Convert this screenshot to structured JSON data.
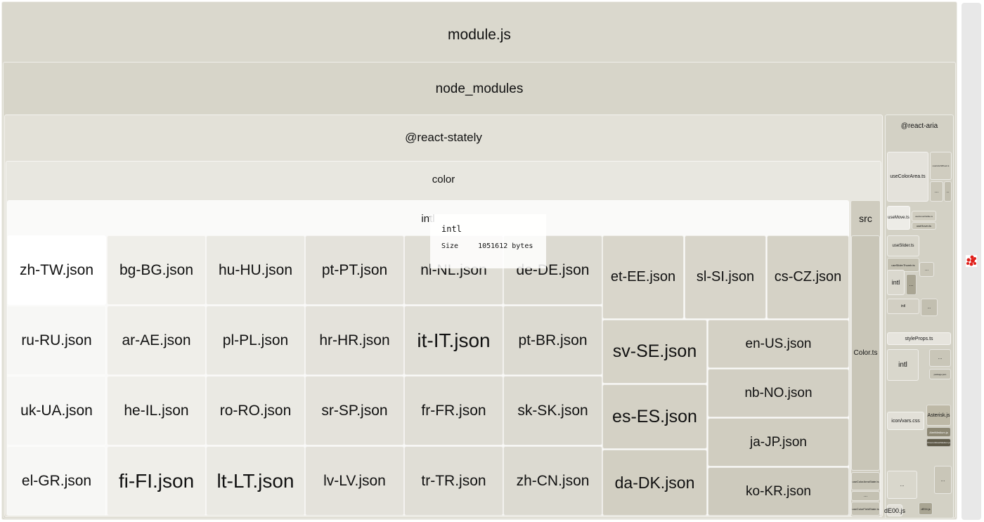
{
  "tree": {
    "root": "module.js",
    "node_modules": "node_modules",
    "react_stately": "@react-stately",
    "color": "color",
    "intl": "intl",
    "src": "src",
    "color_ts": "Color.ts",
    "src_small": [
      "useColorAreaState.ts",
      "useColorFieldState.ts",
      "..."
    ],
    "grid_files": [
      "zh-TW.json",
      "bg-BG.json",
      "hu-HU.json",
      "pt-PT.json",
      "nl-NL.json",
      "de-DE.json",
      "ru-RU.json",
      "ar-AE.json",
      "pl-PL.json",
      "hr-HR.json",
      "it-IT.json",
      "pt-BR.json",
      "uk-UA.json",
      "he-IL.json",
      "ro-RO.json",
      "sr-SP.json",
      "fr-FR.json",
      "sk-SK.json",
      "el-GR.json",
      "fi-FI.json",
      "lt-LT.json",
      "lv-LV.json",
      "tr-TR.json",
      "zh-CN.json"
    ],
    "right_files": [
      "et-EE.json",
      "sl-SI.json",
      "cs-CZ.json",
      "sv-SE.json",
      "es-ES.json",
      "da-DK.json",
      "en-US.json",
      "nb-NO.json",
      "ja-JP.json",
      "ko-KR.json"
    ],
    "react_aria": {
      "label": "@react-aria",
      "items": [
        "useColorArea.ts",
        "useColorWheel.ts",
        "useMove.ts",
        "useFocusVisible.ts",
        "useHover.ts",
        "useSlider.ts",
        "useSliderThumb.ts",
        "intl",
        "intl",
        "styleProps.ts",
        "intl",
        "package.json",
        "icon/vars.css",
        "Asterisk.js",
        "AlertMedium.js",
        "ChevronDownMedium.js",
        "dE00.js",
        "dE94.js"
      ],
      "ellipsis": "..."
    }
  },
  "tooltip": {
    "name": "intl",
    "size_label": "Size",
    "size_value": "1051612 bytes"
  },
  "colors": {
    "base": "#dddbd0",
    "highlight": "#ffffff",
    "logo": "#e0201b"
  }
}
